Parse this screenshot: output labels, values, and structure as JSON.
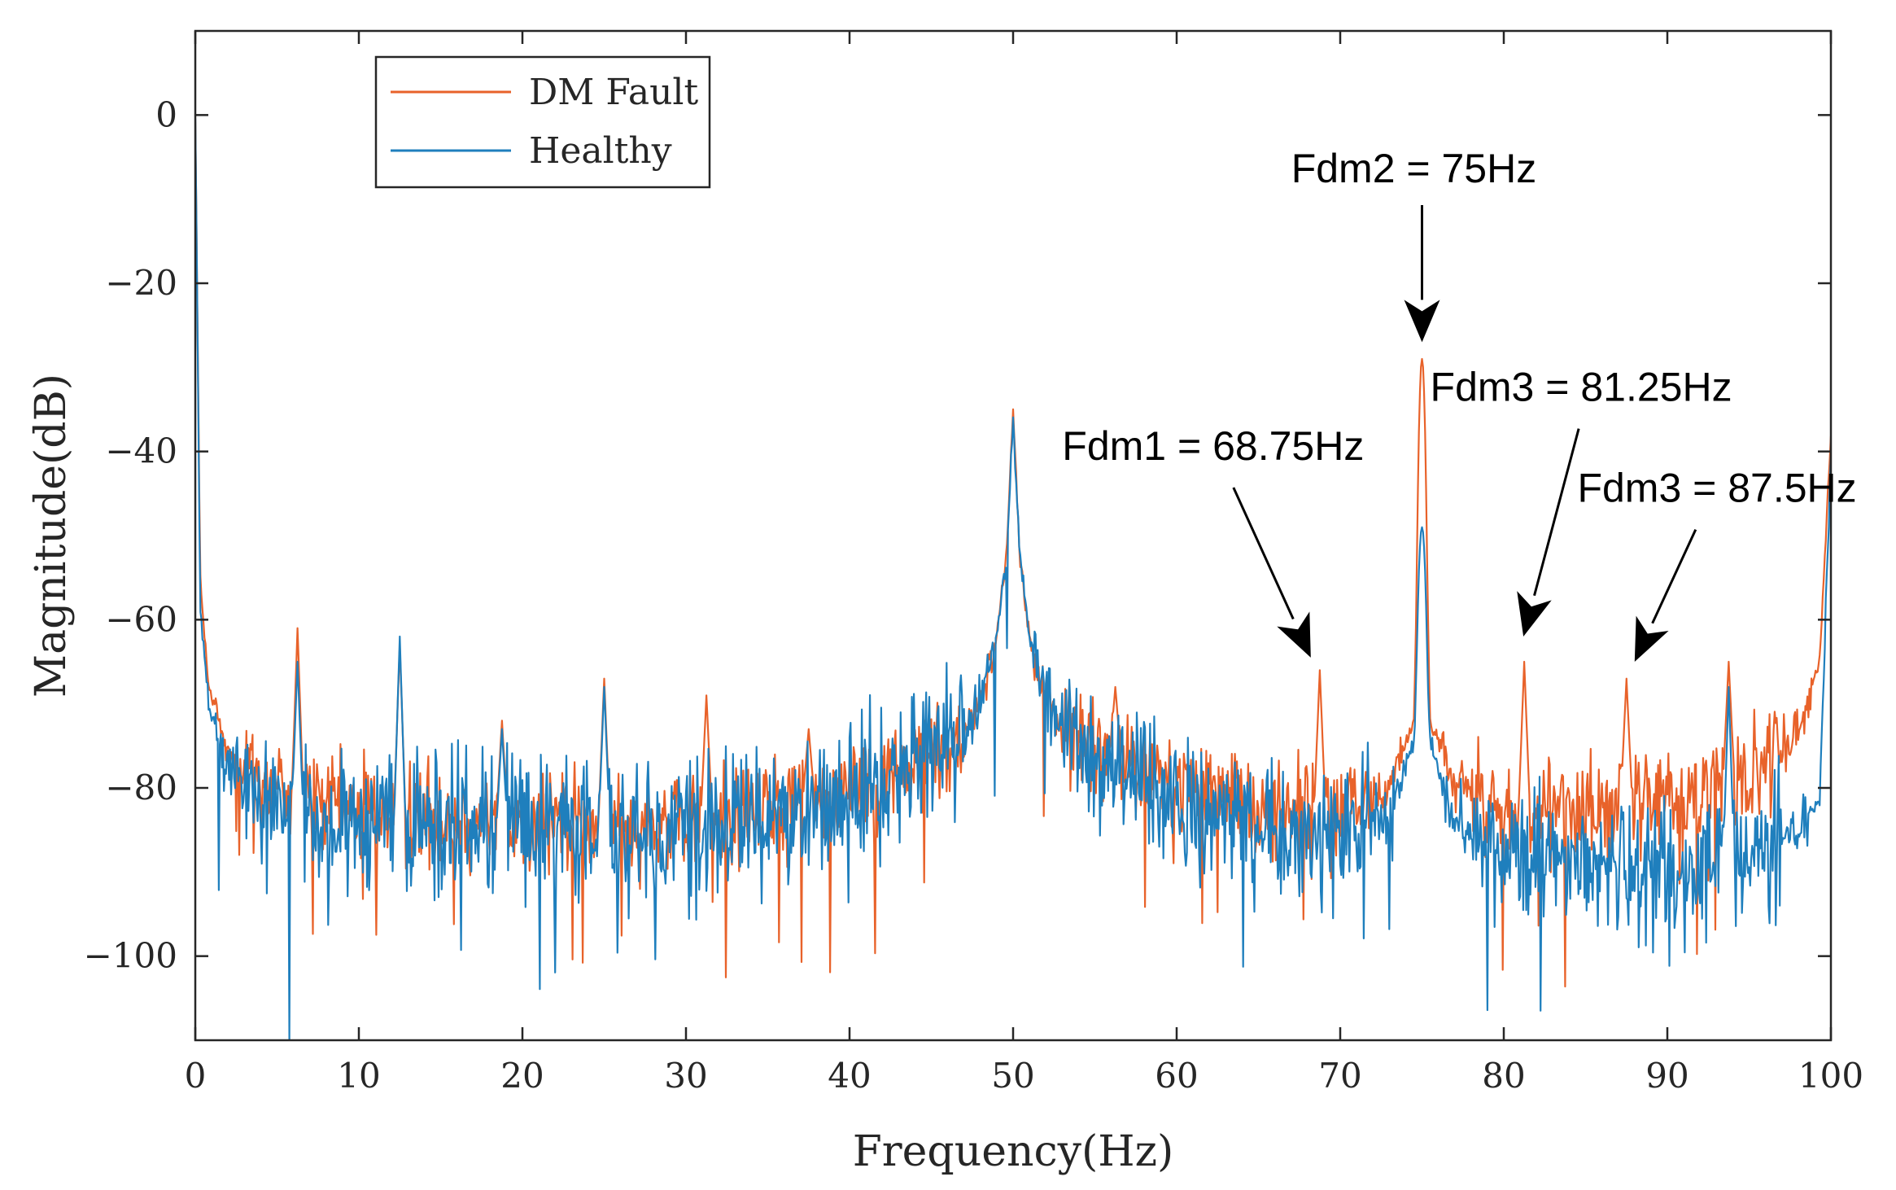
{
  "chart_data": {
    "type": "line",
    "title": "",
    "xlabel": "Frequency(Hz)",
    "ylabel": "Magnitude(dB)",
    "xlim": [
      0,
      100
    ],
    "ylim": [
      -110,
      10
    ],
    "xticks": [
      0,
      10,
      20,
      30,
      40,
      50,
      60,
      70,
      80,
      90,
      100
    ],
    "yticks": [
      0,
      -20,
      -40,
      -60,
      -80,
      -100
    ],
    "ytick_labels": [
      "0",
      "−20",
      "−40",
      "−60",
      "−80",
      "−100"
    ],
    "grid": false,
    "legend_position": "top-left",
    "series": [
      {
        "name": "DM Fault",
        "color": "#e8622a",
        "baseline": [
          [
            0,
            0
          ],
          [
            0.3,
            -55
          ],
          [
            0.8,
            -68
          ],
          [
            2,
            -76
          ],
          [
            5,
            -80
          ],
          [
            8,
            -82
          ],
          [
            12,
            -83
          ],
          [
            20,
            -84
          ],
          [
            30,
            -84
          ],
          [
            38,
            -81
          ],
          [
            43,
            -78
          ],
          [
            46,
            -75
          ],
          [
            48,
            -70
          ],
          [
            49,
            -62
          ],
          [
            49.6,
            -52
          ],
          [
            50,
            -35
          ],
          [
            50.4,
            -52
          ],
          [
            51,
            -62
          ],
          [
            52,
            -70
          ],
          [
            54,
            -74
          ],
          [
            57,
            -77
          ],
          [
            60,
            -80
          ],
          [
            65,
            -82
          ],
          [
            70,
            -83
          ],
          [
            73,
            -80
          ],
          [
            74.5,
            -72
          ],
          [
            75,
            -29
          ],
          [
            75.5,
            -72
          ],
          [
            77,
            -79
          ],
          [
            80,
            -83
          ],
          [
            85,
            -82
          ],
          [
            90,
            -81
          ],
          [
            94,
            -79
          ],
          [
            96,
            -77
          ],
          [
            98,
            -73
          ],
          [
            99.3,
            -65
          ],
          [
            100,
            -38
          ]
        ],
        "peaks": [
          [
            6.25,
            -61
          ],
          [
            12.5,
            -63
          ],
          [
            18.75,
            -72
          ],
          [
            25,
            -67
          ],
          [
            31.25,
            -69
          ],
          [
            37.5,
            -73
          ],
          [
            56.25,
            -68
          ],
          [
            68.75,
            -66
          ],
          [
            75,
            -29
          ],
          [
            81.25,
            -65
          ],
          [
            87.5,
            -67
          ],
          [
            93.75,
            -65
          ]
        ],
        "noise_db": 6
      },
      {
        "name": "Healthy",
        "color": "#1f7fbd",
        "baseline": [
          [
            0,
            0
          ],
          [
            0.3,
            -58
          ],
          [
            0.8,
            -70
          ],
          [
            2,
            -78
          ],
          [
            5,
            -82
          ],
          [
            8,
            -84
          ],
          [
            12,
            -84
          ],
          [
            20,
            -85
          ],
          [
            30,
            -85
          ],
          [
            38,
            -82
          ],
          [
            43,
            -78
          ],
          [
            46,
            -75
          ],
          [
            48,
            -70
          ],
          [
            49,
            -62
          ],
          [
            49.6,
            -52
          ],
          [
            50,
            -36
          ],
          [
            50.4,
            -52
          ],
          [
            51,
            -62
          ],
          [
            52,
            -70
          ],
          [
            54,
            -75
          ],
          [
            57,
            -78
          ],
          [
            60,
            -82
          ],
          [
            65,
            -86
          ],
          [
            70,
            -86
          ],
          [
            73,
            -82
          ],
          [
            74.5,
            -75
          ],
          [
            75,
            -49
          ],
          [
            75.5,
            -75
          ],
          [
            77,
            -84
          ],
          [
            80,
            -88
          ],
          [
            85,
            -89
          ],
          [
            90,
            -90
          ],
          [
            94,
            -89
          ],
          [
            96,
            -87
          ],
          [
            98,
            -85
          ],
          [
            99.3,
            -82
          ],
          [
            100,
            -40
          ]
        ],
        "peaks": [
          [
            6.25,
            -65
          ],
          [
            12.5,
            -62
          ],
          [
            18.75,
            -73
          ],
          [
            25,
            -68
          ],
          [
            75,
            -49
          ],
          [
            93.75,
            -68
          ]
        ],
        "noise_db": 8
      }
    ],
    "annotations": [
      {
        "text": "Fdm1 = 68.75Hz",
        "target": [
          68.2,
          -64.5
        ],
        "label_at": [
          53,
          -41
        ]
      },
      {
        "text": "Fdm2 = 75Hz",
        "target": [
          75,
          -27
        ],
        "label_at": [
          67,
          -8
        ]
      },
      {
        "text": "Fdm3 = 81.25Hz",
        "target": [
          81.2,
          -62
        ],
        "label_at": [
          75.5,
          -34
        ]
      },
      {
        "text": "Fdm3 = 87.5Hz",
        "target": [
          88,
          -65
        ],
        "label_at": [
          84.5,
          -46
        ]
      }
    ]
  }
}
